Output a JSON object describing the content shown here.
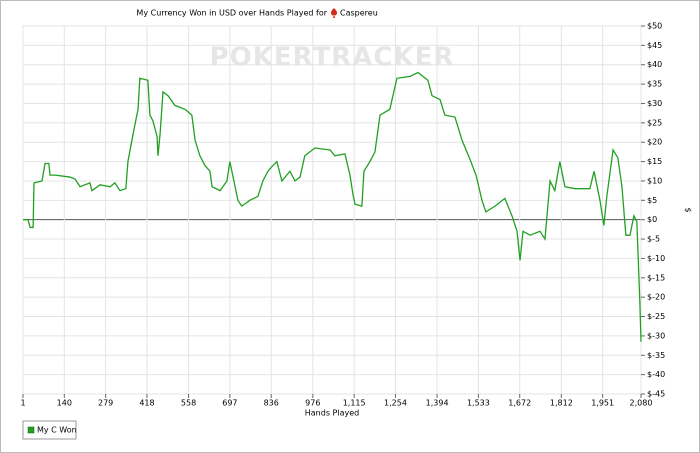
{
  "chart_data": {
    "type": "line",
    "title": "My Currency Won in USD over Hands Played for",
    "player": "Caspereu",
    "watermark": "POKERTRACKER",
    "x_label": "Hands Played",
    "y_label": "$",
    "x": [
      1,
      18,
      25,
      35,
      38,
      65,
      75,
      88,
      92,
      109,
      159,
      176,
      193,
      226,
      233,
      260,
      294,
      310,
      327,
      347,
      354,
      371,
      388,
      394,
      421,
      428,
      438,
      452,
      455,
      462,
      472,
      489,
      512,
      546,
      569,
      580,
      596,
      613,
      630,
      637,
      664,
      687,
      697,
      724,
      737,
      764,
      791,
      808,
      825,
      842,
      855,
      872,
      899,
      916,
      933,
      949,
      983,
      1034,
      1050,
      1084,
      1101,
      1111,
      1118,
      1141,
      1148,
      1168,
      1185,
      1202,
      1235,
      1259,
      1303,
      1330,
      1363,
      1377,
      1404,
      1420,
      1454,
      1478,
      1505,
      1525,
      1545,
      1558,
      1589,
      1622,
      1646,
      1663,
      1673,
      1683,
      1707,
      1740,
      1757,
      1774,
      1790,
      1807,
      1824,
      1858,
      1908,
      1922,
      1942,
      1955,
      1965,
      1986,
      2002,
      2016,
      2029,
      2043,
      2056,
      2066,
      2076,
      2080
    ],
    "series": [
      {
        "name": "My C Won",
        "color": "#22a022",
        "values": [
          0,
          0,
          -2,
          -2,
          9.5,
          10,
          14.5,
          14.5,
          11.5,
          11.5,
          11,
          10.5,
          8.5,
          9.5,
          7.5,
          9,
          8.5,
          9.5,
          7.5,
          8,
          15,
          22,
          28.5,
          36.5,
          36,
          27,
          25.5,
          21.5,
          16.5,
          22,
          33,
          32,
          29.5,
          28.5,
          27,
          20.5,
          16.5,
          14,
          12.5,
          8.5,
          7.5,
          10,
          15,
          5,
          3.5,
          5,
          6,
          10,
          12.5,
          14,
          15,
          10,
          12.5,
          10,
          11,
          16.5,
          18.5,
          18,
          16.5,
          17,
          11.5,
          6.5,
          4,
          3.5,
          12.5,
          15,
          17.5,
          27,
          28.5,
          36.5,
          37,
          38,
          36,
          32,
          31,
          27,
          26.5,
          20.5,
          15.5,
          11.5,
          5,
          2,
          3.5,
          5.5,
          1,
          -3,
          -10.5,
          -3,
          -4,
          -3,
          -5,
          10,
          7.5,
          15,
          8.5,
          8,
          8,
          12.5,
          5,
          -1.5,
          6,
          18,
          16,
          8.5,
          -4,
          -4,
          1,
          -0.5,
          -21,
          -31.5
        ]
      }
    ],
    "xlim": [
      1,
      2080
    ],
    "ylim": [
      -45,
      50
    ],
    "xticks": [
      1,
      140,
      279,
      418,
      558,
      697,
      836,
      976,
      {
        "value": 1115,
        "label": "1,115"
      },
      {
        "value": 1254,
        "label": "1,254"
      },
      {
        "value": 1394,
        "label": "1,394"
      },
      {
        "value": 1533,
        "label": "1,533"
      },
      {
        "value": 1672,
        "label": "1,672"
      },
      {
        "value": 1812,
        "label": "1,812"
      },
      {
        "value": 1951,
        "label": "1,951"
      },
      {
        "value": 2080,
        "label": "2,080"
      }
    ],
    "yticks": [
      {
        "value": 50,
        "label": "$50"
      },
      {
        "value": 45,
        "label": "$45"
      },
      {
        "value": 40,
        "label": "$40"
      },
      {
        "value": 35,
        "label": "$35"
      },
      {
        "value": 30,
        "label": "$30"
      },
      {
        "value": 25,
        "label": "$25"
      },
      {
        "value": 20,
        "label": "$20"
      },
      {
        "value": 15,
        "label": "$15"
      },
      {
        "value": 10,
        "label": "$10"
      },
      {
        "value": 5,
        "label": "$5"
      },
      {
        "value": 0,
        "label": "$0"
      },
      {
        "value": -5,
        "label": "$-5"
      },
      {
        "value": -10,
        "label": "$-10"
      },
      {
        "value": -15,
        "label": "$-15"
      },
      {
        "value": -20,
        "label": "$-20"
      },
      {
        "value": -25,
        "label": "$-25"
      },
      {
        "value": -30,
        "label": "$-30"
      },
      {
        "value": -35,
        "label": "$-35"
      },
      {
        "value": -40,
        "label": "$-40"
      },
      {
        "value": -45,
        "label": "$-45"
      }
    ],
    "grid": true
  }
}
